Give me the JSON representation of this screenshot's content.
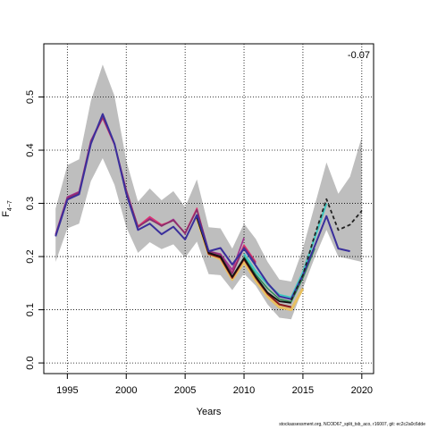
{
  "chart_data": {
    "type": "line",
    "ylabel_main": "F",
    "ylabel_sub": "4−7",
    "xlabel": "Years",
    "annotation": "-0.07",
    "xlim": [
      1993,
      2021
    ],
    "ylim": [
      -0.02,
      0.6
    ],
    "x_ticks": [
      1995,
      2000,
      2005,
      2010,
      2015,
      2020
    ],
    "y_ticks": [
      0.0,
      0.1,
      0.2,
      0.3,
      0.4,
      0.5
    ],
    "y_tick_labels": [
      "0.0",
      "0.1",
      "0.2",
      "0.3",
      "0.4",
      "0.5"
    ],
    "grid": true,
    "band": {
      "color": "#bebebe",
      "x": [
        1994,
        1995,
        1996,
        1997,
        1998,
        1999,
        2000,
        2001,
        2002,
        2003,
        2004,
        2005,
        2006,
        2007,
        2008,
        2009,
        2010,
        2011,
        2012,
        2013,
        2014,
        2015,
        2016,
        2017,
        2018,
        2019,
        2020
      ],
      "upper": [
        0.29,
        0.372,
        0.383,
        0.493,
        0.561,
        0.502,
        0.38,
        0.303,
        0.328,
        0.306,
        0.323,
        0.293,
        0.345,
        0.255,
        0.253,
        0.215,
        0.262,
        0.233,
        0.19,
        0.157,
        0.153,
        0.215,
        0.296,
        0.377,
        0.318,
        0.35,
        0.425
      ],
      "lower": [
        0.19,
        0.253,
        0.262,
        0.342,
        0.385,
        0.335,
        0.255,
        0.207,
        0.227,
        0.214,
        0.223,
        0.198,
        0.228,
        0.167,
        0.165,
        0.137,
        0.168,
        0.145,
        0.11,
        0.085,
        0.082,
        0.14,
        0.198,
        0.25,
        0.2,
        0.195,
        0.19
      ]
    },
    "series": [
      {
        "color": "#a03090",
        "width": 1.6,
        "dash": "",
        "start": 1994,
        "values": [
          0.242,
          0.312,
          0.322,
          0.418,
          0.463,
          0.412,
          0.325,
          0.255,
          0.272,
          0.257,
          0.27,
          0.243,
          0.289,
          0.21,
          0.205,
          0.175,
          0.235
        ]
      },
      {
        "color": "#e03070",
        "width": 1.4,
        "dash": "",
        "start": 1994,
        "values": [
          0.24,
          0.31,
          0.32,
          0.415,
          0.46,
          0.41,
          0.323,
          0.257,
          0.275,
          0.26,
          0.268,
          0.245,
          0.291,
          0.207,
          0.2,
          0.17,
          0.222,
          0.19
        ]
      },
      {
        "color": "#8a2e6a",
        "width": 1.6,
        "dash": "",
        "start": 1994,
        "values": [
          0.24,
          0.31,
          0.32,
          0.416,
          0.462,
          0.412,
          0.324,
          0.256,
          0.27,
          0.258,
          0.268,
          0.244,
          0.288,
          0.21,
          0.203,
          0.168,
          0.218,
          0.187
        ]
      },
      {
        "color": "#e8c060",
        "width": 3.0,
        "dash": "",
        "start": 2006,
        "values": [
          0.272,
          0.205,
          0.195,
          0.157,
          0.19,
          0.155,
          0.125,
          0.105,
          0.1,
          0.14
        ]
      },
      {
        "color": "#8b1a1a",
        "width": 2.0,
        "dash": "",
        "start": 2006,
        "values": [
          0.275,
          0.205,
          0.198,
          0.16,
          0.195,
          0.16,
          0.13,
          0.11,
          0.105
        ]
      },
      {
        "color": "#2e8b57",
        "width": 1.6,
        "dash": "",
        "start": 2010,
        "values": [
          0.2,
          0.166,
          0.14,
          0.12,
          0.115,
          0.16,
          0.215
        ]
      },
      {
        "color": "#40c8c0",
        "width": 2.2,
        "dash": "",
        "start": 2010,
        "values": [
          0.205,
          0.172,
          0.148,
          0.128,
          0.123,
          0.17,
          0.235,
          0.3
        ]
      },
      {
        "color": "#111111",
        "width": 1.8,
        "dash": "",
        "start": 2006,
        "values": [
          0.273,
          0.207,
          0.2,
          0.162,
          0.197,
          0.162,
          0.132,
          0.116,
          0.113
        ]
      },
      {
        "color": "#3a2f9c",
        "width": 2.0,
        "dash": "",
        "start": 1994,
        "values": [
          0.238,
          0.307,
          0.317,
          0.412,
          0.468,
          0.412,
          0.318,
          0.25,
          0.262,
          0.242,
          0.256,
          0.232,
          0.278,
          0.21,
          0.216,
          0.185,
          0.215,
          0.183,
          0.15,
          0.125,
          0.12,
          0.165,
          0.22,
          0.276,
          0.215,
          0.21
        ]
      },
      {
        "color": "#222222",
        "width": 1.8,
        "dash": "4,3",
        "start": 2014,
        "values": [
          0.118,
          0.165,
          0.24,
          0.308,
          0.25,
          0.26,
          0.286
        ]
      }
    ]
  },
  "footer": "stockassessment.org, NCOD67_split_tsb_aco, r16007, git: ec2c2a0c6dde"
}
